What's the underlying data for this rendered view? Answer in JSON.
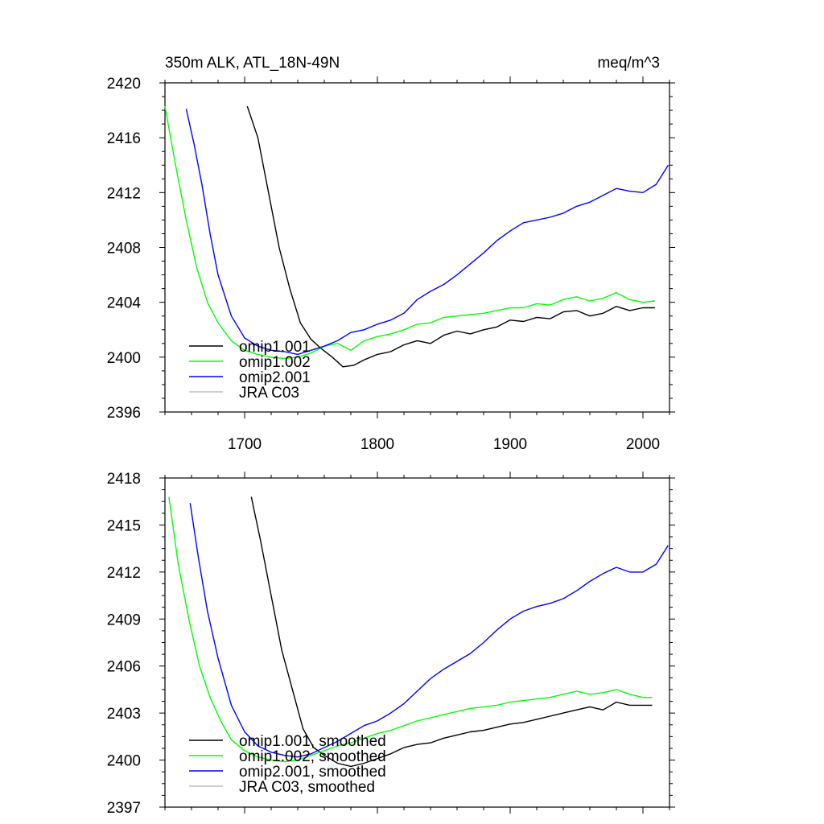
{
  "chart_data": [
    {
      "type": "line",
      "title_left": "350m ALK, ATL_18N-49N",
      "title_right": "meq/m^3",
      "xlim": [
        1640,
        2020
      ],
      "ylim": [
        2396,
        2420
      ],
      "xticks": [
        1700,
        1800,
        1900,
        2000
      ],
      "yticks": [
        2396,
        2400,
        2404,
        2408,
        2412,
        2416,
        2420
      ],
      "legend_position": "lower-left",
      "grid": false,
      "series": [
        {
          "name": "omip1.001",
          "color": "#000000",
          "x": [
            1702,
            1710,
            1718,
            1726,
            1734,
            1742,
            1750,
            1758,
            1766,
            1774,
            1782,
            1790,
            1800,
            1810,
            1820,
            1830,
            1840,
            1850,
            1860,
            1870,
            1880,
            1890,
            1900,
            1910,
            1920,
            1930,
            1940,
            1950,
            1960,
            1970,
            1980,
            1990,
            2000,
            2009
          ],
          "y": [
            2418.3,
            2416.0,
            2412.0,
            2408.0,
            2405.0,
            2402.5,
            2401.3,
            2400.6,
            2400.0,
            2399.3,
            2399.4,
            2399.8,
            2400.2,
            2400.4,
            2400.9,
            2401.2,
            2401.0,
            2401.6,
            2401.9,
            2401.7,
            2402.0,
            2402.2,
            2402.7,
            2402.6,
            2402.9,
            2402.8,
            2403.3,
            2403.4,
            2403.0,
            2403.2,
            2403.7,
            2403.4,
            2403.6,
            2403.6
          ]
        },
        {
          "name": "omip1.002",
          "color": "#00ff00",
          "x": [
            1640,
            1648,
            1656,
            1664,
            1672,
            1680,
            1690,
            1700,
            1710,
            1720,
            1730,
            1740,
            1750,
            1760,
            1770,
            1780,
            1790,
            1800,
            1810,
            1820,
            1830,
            1840,
            1850,
            1860,
            1870,
            1880,
            1890,
            1900,
            1910,
            1920,
            1930,
            1940,
            1950,
            1960,
            1970,
            1980,
            1990,
            2000,
            2009
          ],
          "y": [
            2418.3,
            2414.0,
            2410.0,
            2406.5,
            2404.0,
            2402.5,
            2401.2,
            2400.5,
            2400.2,
            2400.0,
            2399.9,
            2400.0,
            2400.3,
            2400.8,
            2401.0,
            2400.5,
            2401.2,
            2401.5,
            2401.7,
            2402.0,
            2402.4,
            2402.5,
            2402.9,
            2403.0,
            2403.1,
            2403.2,
            2403.4,
            2403.6,
            2403.6,
            2403.9,
            2403.8,
            2404.2,
            2404.4,
            2404.1,
            2404.3,
            2404.7,
            2404.2,
            2404.0,
            2404.1
          ]
        },
        {
          "name": "omip2.001",
          "color": "#0000ff",
          "x": [
            1656,
            1662,
            1668,
            1674,
            1680,
            1690,
            1700,
            1710,
            1720,
            1730,
            1740,
            1750,
            1760,
            1770,
            1780,
            1790,
            1800,
            1810,
            1820,
            1830,
            1840,
            1850,
            1860,
            1870,
            1880,
            1890,
            1900,
            1910,
            1920,
            1930,
            1940,
            1950,
            1960,
            1970,
            1980,
            1990,
            2000,
            2010,
            2019
          ],
          "y": [
            2418.1,
            2415.5,
            2412.5,
            2409.0,
            2406.0,
            2403.0,
            2401.4,
            2400.8,
            2400.5,
            2400.4,
            2400.2,
            2400.5,
            2400.8,
            2401.2,
            2401.8,
            2402.0,
            2402.4,
            2402.7,
            2403.2,
            2404.2,
            2404.8,
            2405.3,
            2406.0,
            2406.8,
            2407.6,
            2408.5,
            2409.2,
            2409.8,
            2410.0,
            2410.2,
            2410.5,
            2411.0,
            2411.3,
            2411.8,
            2412.3,
            2412.1,
            2412.0,
            2412.6,
            2414.0
          ]
        },
        {
          "name": "JRA C03",
          "color": "#c0c0c0",
          "x": [],
          "y": []
        }
      ]
    },
    {
      "type": "line",
      "xlim": [
        1640,
        2020
      ],
      "ylim": [
        2397,
        2418
      ],
      "xticks": [
        1700,
        1800,
        1900,
        2000
      ],
      "yticks": [
        2397,
        2400,
        2403,
        2406,
        2409,
        2412,
        2415,
        2418
      ],
      "legend_position": "lower-left",
      "grid": false,
      "series": [
        {
          "name": "omip1.001, smoothed",
          "color": "#000000",
          "x": [
            1705,
            1712,
            1720,
            1728,
            1736,
            1744,
            1752,
            1760,
            1770,
            1780,
            1790,
            1800,
            1810,
            1820,
            1830,
            1840,
            1850,
            1860,
            1870,
            1880,
            1890,
            1900,
            1910,
            1920,
            1930,
            1940,
            1950,
            1960,
            1970,
            1980,
            1990,
            2000,
            2007
          ],
          "y": [
            2416.8,
            2414.0,
            2410.5,
            2407.0,
            2404.5,
            2402.0,
            2400.8,
            2400.3,
            2399.8,
            2399.6,
            2399.8,
            2400.1,
            2400.4,
            2400.8,
            2401.0,
            2401.1,
            2401.4,
            2401.6,
            2401.8,
            2401.9,
            2402.1,
            2402.3,
            2402.4,
            2402.6,
            2402.8,
            2403.0,
            2403.2,
            2403.4,
            2403.2,
            2403.7,
            2403.5,
            2403.5,
            2403.5
          ]
        },
        {
          "name": "omip1.002, smoothed",
          "color": "#00ff00",
          "x": [
            1643,
            1650,
            1658,
            1666,
            1674,
            1682,
            1690,
            1700,
            1710,
            1720,
            1730,
            1740,
            1750,
            1760,
            1770,
            1780,
            1790,
            1800,
            1810,
            1820,
            1830,
            1840,
            1850,
            1860,
            1870,
            1880,
            1890,
            1900,
            1910,
            1920,
            1930,
            1940,
            1950,
            1960,
            1970,
            1980,
            1990,
            2000,
            2007
          ],
          "y": [
            2416.8,
            2412.5,
            2409.0,
            2406.0,
            2404.0,
            2402.5,
            2401.3,
            2400.6,
            2400.2,
            2400.0,
            2399.9,
            2400.0,
            2400.3,
            2400.6,
            2400.9,
            2401.1,
            2401.4,
            2401.7,
            2401.9,
            2402.2,
            2402.5,
            2402.7,
            2402.9,
            2403.1,
            2403.3,
            2403.4,
            2403.5,
            2403.7,
            2403.8,
            2403.9,
            2404.0,
            2404.2,
            2404.4,
            2404.2,
            2404.3,
            2404.5,
            2404.2,
            2404.0,
            2404.0
          ]
        },
        {
          "name": "omip2.001, smoothed",
          "color": "#0000ff",
          "x": [
            1659,
            1665,
            1672,
            1680,
            1690,
            1700,
            1710,
            1720,
            1730,
            1740,
            1750,
            1760,
            1770,
            1780,
            1790,
            1800,
            1810,
            1820,
            1830,
            1840,
            1850,
            1860,
            1870,
            1880,
            1890,
            1900,
            1910,
            1920,
            1930,
            1940,
            1950,
            1960,
            1970,
            1980,
            1990,
            2000,
            2010,
            2019
          ],
          "y": [
            2416.4,
            2413.0,
            2409.5,
            2406.5,
            2403.5,
            2401.8,
            2400.9,
            2400.5,
            2400.3,
            2400.2,
            2400.4,
            2400.8,
            2401.2,
            2401.7,
            2402.2,
            2402.5,
            2403.0,
            2403.6,
            2404.4,
            2405.2,
            2405.8,
            2406.3,
            2406.8,
            2407.5,
            2408.3,
            2409.0,
            2409.5,
            2409.8,
            2410.0,
            2410.3,
            2410.8,
            2411.4,
            2411.9,
            2412.3,
            2412.0,
            2412.0,
            2412.5,
            2413.7
          ]
        },
        {
          "name": "JRA C03, smoothed",
          "color": "#c0c0c0",
          "x": [],
          "y": []
        }
      ]
    }
  ]
}
